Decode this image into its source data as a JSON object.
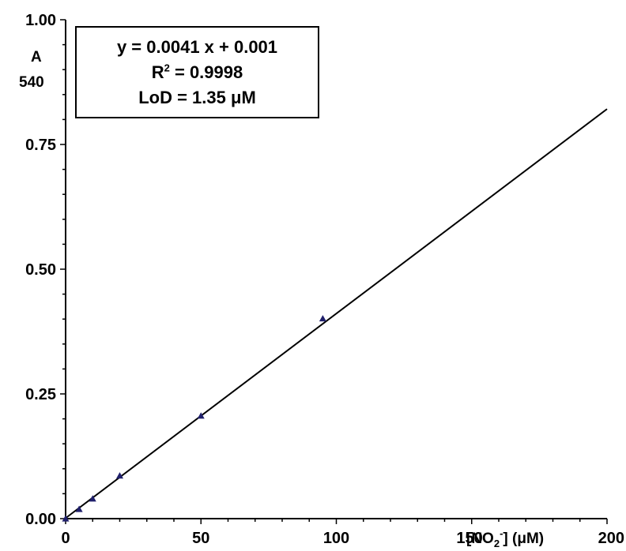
{
  "chart_data": {
    "type": "scatter",
    "x": [
      0,
      5,
      10,
      20,
      50,
      95
    ],
    "y": [
      0.0,
      0.019,
      0.04,
      0.086,
      0.206,
      0.401
    ],
    "marker": "triangle",
    "marker_color": "#1f1f6b",
    "fit": {
      "slope": 0.0041,
      "intercept": 0.001,
      "x_range": [
        0,
        200
      ]
    },
    "xlim": [
      0,
      200
    ],
    "ylim": [
      0,
      1.0
    ],
    "xticks": [
      "0",
      "50",
      "100",
      "150",
      "200"
    ],
    "yticks": [
      "0.00",
      "0.25",
      "0.50",
      "0.75",
      "1.00"
    ],
    "xlabel": {
      "main": "[NO",
      "sub": "2",
      "sup": "-",
      "rest": "] (μM)"
    },
    "ylabel": {
      "main": "A",
      "sub": "540"
    },
    "annotation": {
      "equation": "y = 0.0041 x + 0.001",
      "r2_prefix": "R",
      "r2_sup": "2",
      "r2_rest": " = 0.9998",
      "lod": "LoD = 1.35 μM"
    }
  }
}
